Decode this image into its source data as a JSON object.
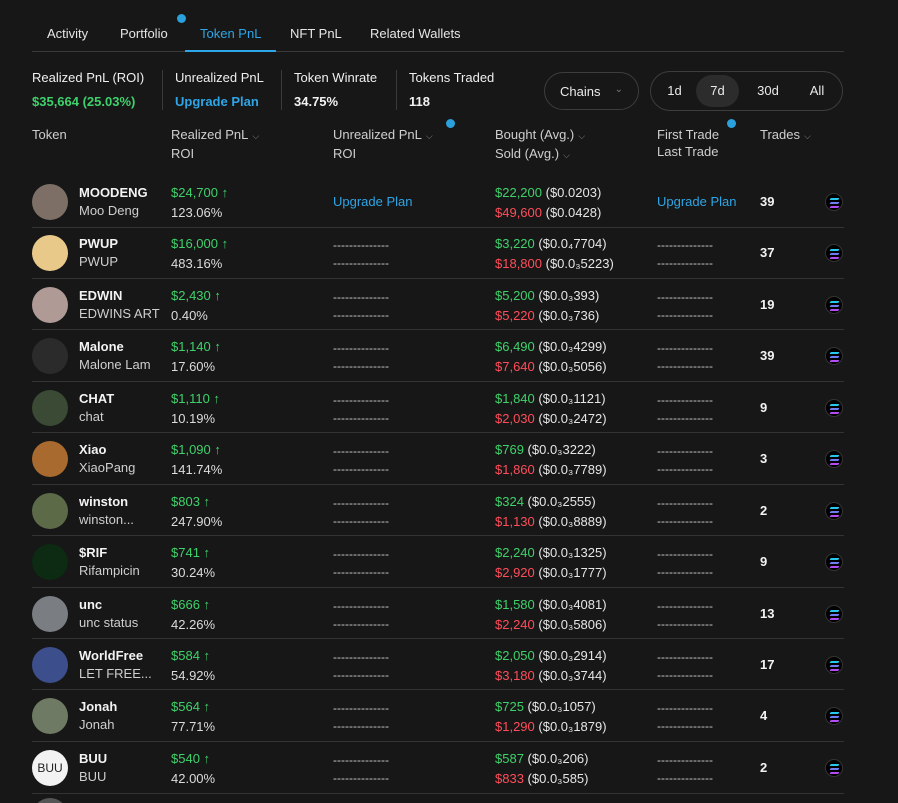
{
  "tabs": [
    "Activity",
    "Portfolio",
    "Token PnL",
    "NFT PnL",
    "Related Wallets"
  ],
  "active_tab": "Token PnL",
  "summary": {
    "realized_label": "Realized PnL (ROI)",
    "realized_value": "$35,664 (25.03%)",
    "unrealized_label": "Unrealized PnL",
    "unrealized_value": "Upgrade Plan",
    "winrate_label": "Token Winrate",
    "winrate_value": "34.75%",
    "traded_label": "Tokens Traded",
    "traded_value": "118"
  },
  "chains_label": "Chains",
  "periods": [
    "1d",
    "7d",
    "30d",
    "All"
  ],
  "active_period": "7d",
  "headers": {
    "token": "Token",
    "realized": "Realized PnL",
    "realized_roi": "ROI",
    "unrealized": "Unrealized PnL",
    "unrealized_roi": "ROI",
    "bought": "Bought (Avg.)",
    "sold": "Sold (Avg.)",
    "first_trade": "First Trade",
    "last_trade": "Last Trade",
    "trades": "Trades"
  },
  "colors": {
    "green": "#3fd16b",
    "red": "#ff4d5a",
    "blue": "#2ea5e6"
  },
  "rows": [
    {
      "symbol": "MOODENG",
      "name": "Moo Deng",
      "pnl": "$24,700 ↑",
      "roi": "123.06%",
      "unrealized": "Upgrade Plan",
      "bought": "$22,200",
      "bought_avg": "($0.0203)",
      "sold": "$49,600",
      "sold_avg": "($0.0428)",
      "first_last": "Upgrade Plan",
      "trades": "39",
      "avatar": "#7d6f66"
    },
    {
      "symbol": "PWUP",
      "name": "PWUP",
      "pnl": "$16,000 ↑",
      "roi": "483.16%",
      "unrealized": "--------------",
      "bought": "$3,220",
      "bought_avg": "($0.0₄7704)",
      "sold": "$18,800",
      "sold_avg": "($0.0₃5223)",
      "first_last": "--------------",
      "trades": "37",
      "avatar": "#e8c98a"
    },
    {
      "symbol": "EDWIN",
      "name": "EDWINS ART",
      "pnl": "$2,430 ↑",
      "roi": "0.40%",
      "unrealized": "--------------",
      "bought": "$5,200",
      "bought_avg": "($0.0₃393)",
      "sold": "$5,220",
      "sold_avg": "($0.0₃736)",
      "first_last": "--------------",
      "trades": "19",
      "avatar": "#b09a96"
    },
    {
      "symbol": "Malone",
      "name": "Malone Lam",
      "pnl": "$1,140 ↑",
      "roi": "17.60%",
      "unrealized": "--------------",
      "bought": "$6,490",
      "bought_avg": "($0.0₃4299)",
      "sold": "$7,640",
      "sold_avg": "($0.0₃5056)",
      "first_last": "--------------",
      "trades": "39",
      "avatar": "#2b2b2b"
    },
    {
      "symbol": "CHAT",
      "name": "chat",
      "pnl": "$1,110 ↑",
      "roi": "10.19%",
      "unrealized": "--------------",
      "bought": "$1,840",
      "bought_avg": "($0.0₃1121)",
      "sold": "$2,030",
      "sold_avg": "($0.0₃2472)",
      "first_last": "--------------",
      "trades": "9",
      "avatar": "#3a4a35"
    },
    {
      "symbol": "Xiao",
      "name": "XiaoPang",
      "pnl": "$1,090 ↑",
      "roi": "141.74%",
      "unrealized": "--------------",
      "bought": "$769",
      "bought_avg": "($0.0₃3222)",
      "sold": "$1,860",
      "sold_avg": "($0.0₃7789)",
      "first_last": "--------------",
      "trades": "3",
      "avatar": "#a86a2e"
    },
    {
      "symbol": "winston",
      "name": "winston...",
      "pnl": "$803 ↑",
      "roi": "247.90%",
      "unrealized": "--------------",
      "bought": "$324",
      "bought_avg": "($0.0₃2555)",
      "sold": "$1,130",
      "sold_avg": "($0.0₃8889)",
      "first_last": "--------------",
      "trades": "2",
      "avatar": "#5c6a48"
    },
    {
      "symbol": "$RIF",
      "name": "Rifampicin",
      "pnl": "$741 ↑",
      "roi": "30.24%",
      "unrealized": "--------------",
      "bought": "$2,240",
      "bought_avg": "($0.0₃1325)",
      "sold": "$2,920",
      "sold_avg": "($0.0₃1777)",
      "first_last": "--------------",
      "trades": "9",
      "avatar": "#0d2a12"
    },
    {
      "symbol": "unc",
      "name": "unc status",
      "pnl": "$666 ↑",
      "roi": "42.26%",
      "unrealized": "--------------",
      "bought": "$1,580",
      "bought_avg": "($0.0₃4081)",
      "sold": "$2,240",
      "sold_avg": "($0.0₃5806)",
      "first_last": "--------------",
      "trades": "13",
      "avatar": "#7a7e82"
    },
    {
      "symbol": "WorldFree",
      "name": "LET FREE...",
      "pnl": "$584 ↑",
      "roi": "54.92%",
      "unrealized": "--------------",
      "bought": "$2,050",
      "bought_avg": "($0.0₃2914)",
      "sold": "$3,180",
      "sold_avg": "($0.0₃3744)",
      "first_last": "--------------",
      "trades": "17",
      "avatar": "#3c4f8c"
    },
    {
      "symbol": "Jonah",
      "name": "Jonah",
      "pnl": "$564 ↑",
      "roi": "77.71%",
      "unrealized": "--------------",
      "bought": "$725",
      "bought_avg": "($0.0₃1057)",
      "sold": "$1,290",
      "sold_avg": "($0.0₃1879)",
      "first_last": "--------------",
      "trades": "4",
      "avatar": "#6f7a64"
    },
    {
      "symbol": "BUU",
      "name": "BUU",
      "pnl": "$540 ↑",
      "roi": "42.00%",
      "unrealized": "--------------",
      "bought": "$587",
      "bought_avg": "($0.0₃206)",
      "sold": "$833",
      "sold_avg": "($0.0₃585)",
      "first_last": "--------------",
      "trades": "2",
      "avatar": "#f2f2f2",
      "avatar_text": "BUU"
    }
  ]
}
